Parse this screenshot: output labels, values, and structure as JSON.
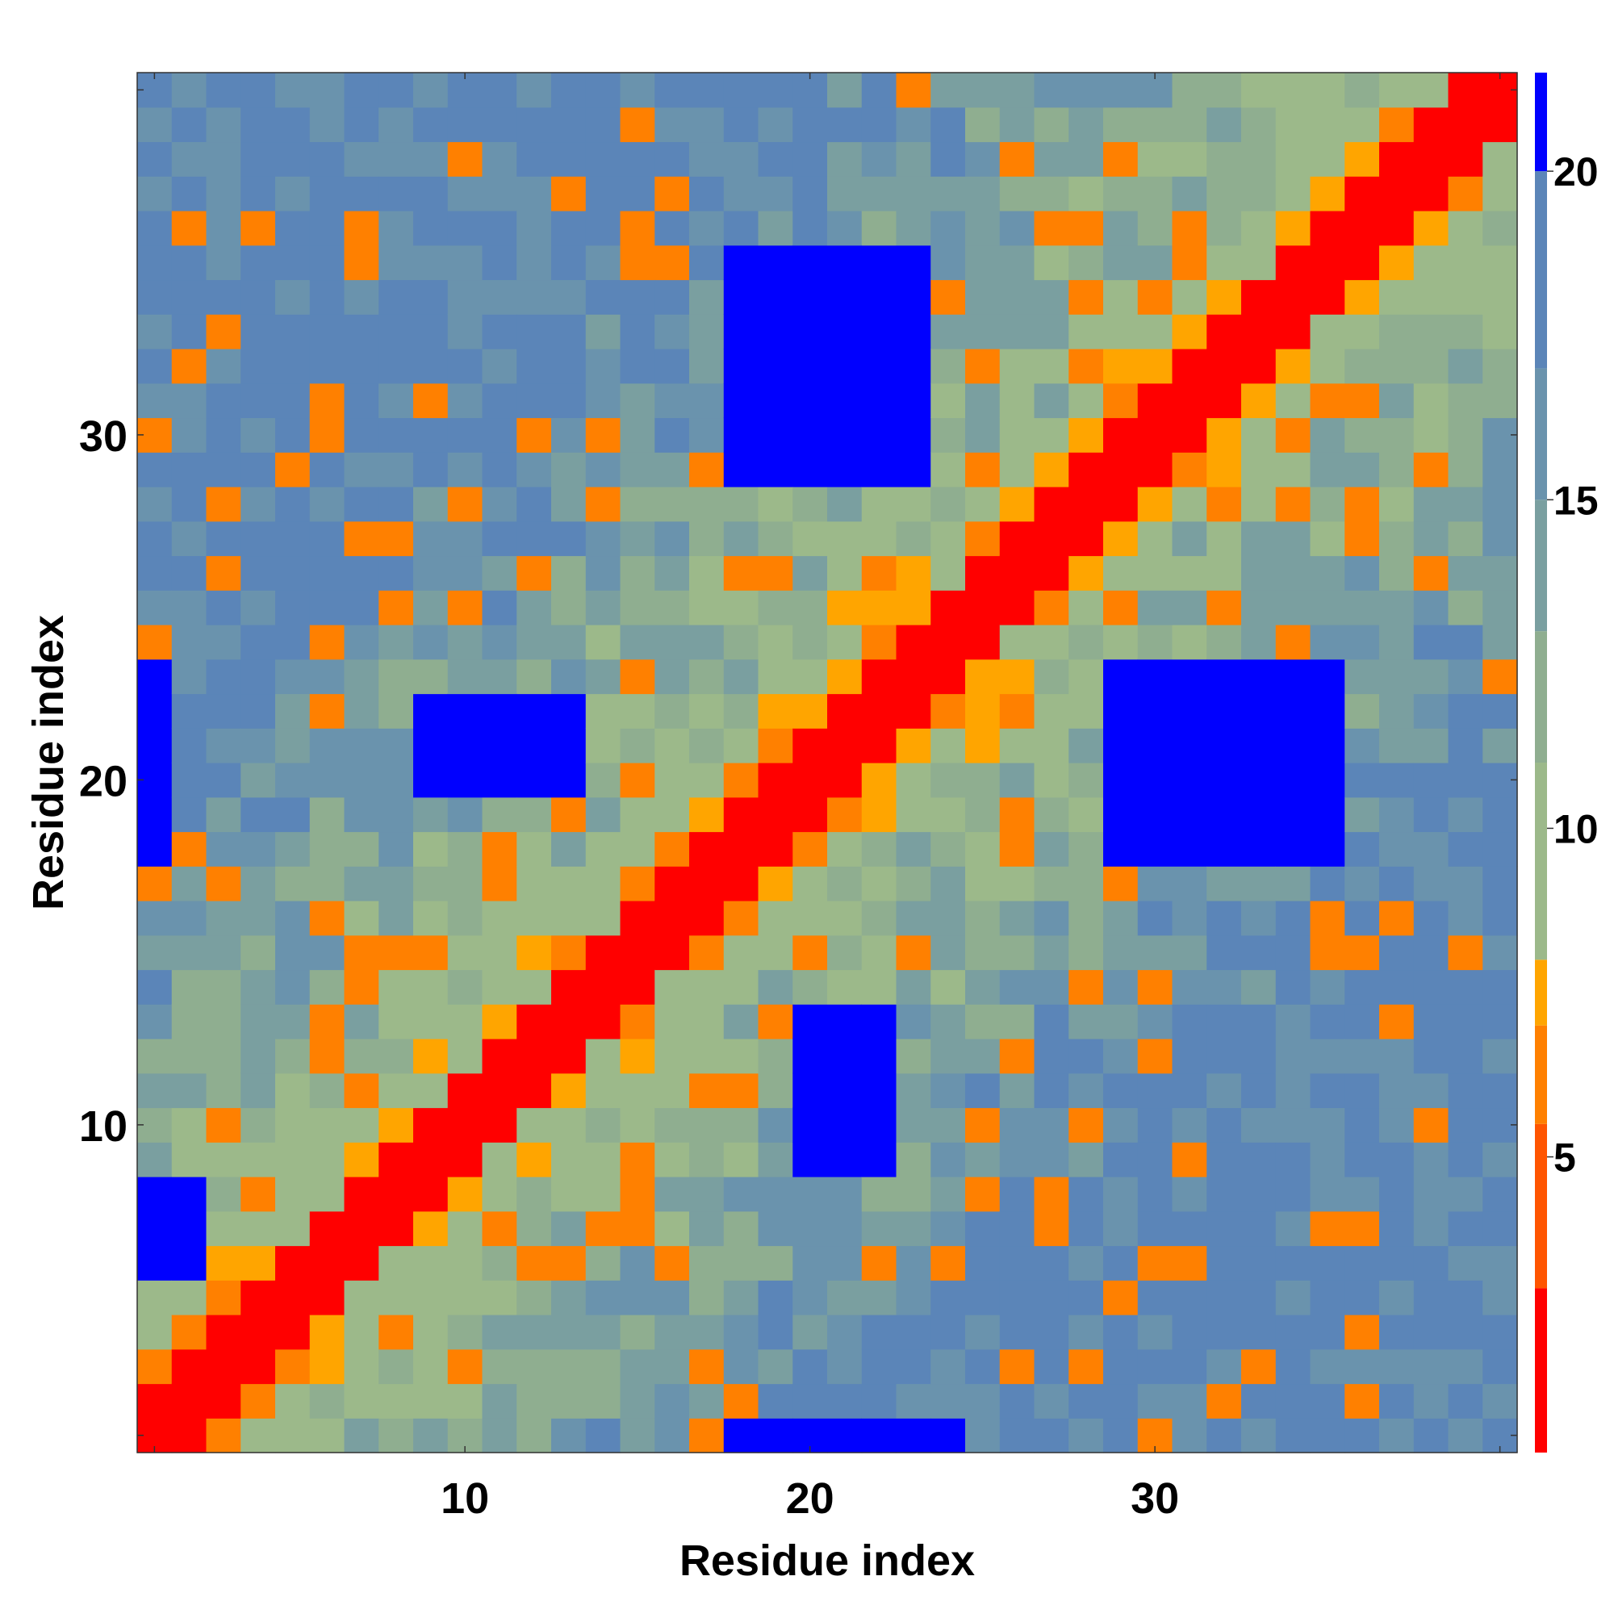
{
  "chart_data": {
    "type": "heatmap",
    "title": "",
    "xlabel": "Residue index",
    "ylabel": "Residue index",
    "n": 40,
    "x_range": [
      1,
      40
    ],
    "y_range": [
      1,
      40
    ],
    "x_ticks": [
      10,
      20,
      30
    ],
    "y_ticks": [
      10,
      20,
      30
    ],
    "x_tick_labels": [
      "10",
      "20",
      "30"
    ],
    "y_tick_labels": [
      "10",
      "20",
      "30"
    ],
    "colorbar": {
      "ticks": [
        5,
        10,
        15,
        20
      ],
      "tick_labels": [
        "5",
        "10",
        "15",
        "20"
      ],
      "range": [
        0.5,
        21.5
      ],
      "bands": [
        {
          "from": 0.5,
          "to": 3.0,
          "color": "#ff0000"
        },
        {
          "from": 3.0,
          "to": 5.5,
          "color": "#ff5500"
        },
        {
          "from": 5.5,
          "to": 7.0,
          "color": "#ff8000"
        },
        {
          "from": 7.0,
          "to": 8.0,
          "color": "#ffa500"
        },
        {
          "from": 8.0,
          "to": 11.0,
          "color": "#9cb98a"
        },
        {
          "from": 11.0,
          "to": 13.0,
          "color": "#8fae90"
        },
        {
          "from": 13.0,
          "to": 15.0,
          "color": "#7a9fa0"
        },
        {
          "from": 15.0,
          "to": 17.0,
          "color": "#6a93ad"
        },
        {
          "from": 17.0,
          "to": 20.0,
          "color": "#5b85b8"
        },
        {
          "from": 20.0,
          "to": 21.5,
          "color": "#0000ff"
        }
      ]
    },
    "value_rule": "distance-like matrix; values derived from residue separation with blue (>20) clusters",
    "blue_regions": [
      {
        "i": [
          18,
          23
        ],
        "j": [
          29,
          35
        ]
      },
      {
        "i": [
          29,
          35
        ],
        "j": [
          18,
          23
        ]
      },
      {
        "i": [
          20,
          22
        ],
        "j": [
          9,
          13
        ]
      },
      {
        "i": [
          9,
          13
        ],
        "j": [
          20,
          22
        ]
      },
      {
        "i": [
          1,
          1
        ],
        "j": [
          18,
          23
        ]
      },
      {
        "i": [
          18,
          23
        ],
        "j": [
          1,
          1
        ]
      },
      {
        "i": [
          19,
          24
        ],
        "j": [
          1,
          1
        ]
      },
      {
        "i": [
          1,
          2
        ],
        "j": [
          6,
          8
        ]
      }
    ],
    "grid": false,
    "legend": "colorbar-right"
  }
}
